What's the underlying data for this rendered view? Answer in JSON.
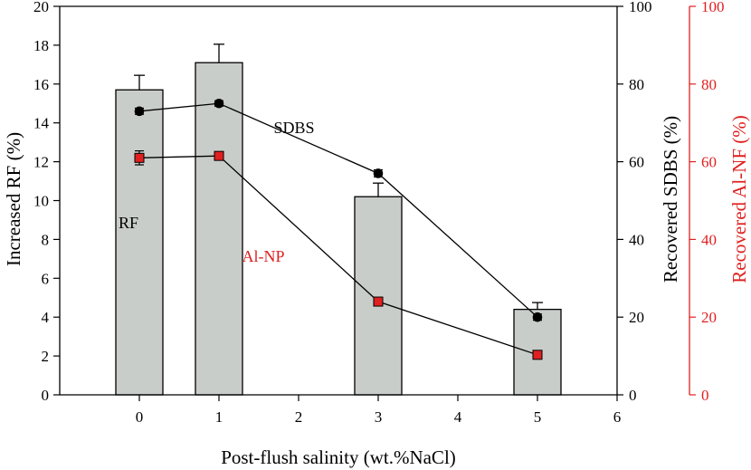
{
  "chart_data": {
    "type": "bar+line",
    "x_title": "Post-flush salinity (wt.%NaCl)",
    "xlim": [
      -1,
      6
    ],
    "x_ticks": [
      0,
      1,
      2,
      3,
      4,
      5,
      6
    ],
    "x_tick_labels": [
      "0",
      "1",
      "2",
      "3",
      "4",
      "5",
      "6"
    ],
    "left_axis": {
      "label": "Increased RF (%)",
      "ylim": [
        0,
        20
      ],
      "ticks": [
        0,
        2,
        4,
        6,
        8,
        10,
        12,
        14,
        16,
        18,
        20
      ],
      "tick_labels": [
        "0",
        "2",
        "4",
        "6",
        "8",
        "10",
        "12",
        "14",
        "16",
        "18",
        "20"
      ]
    },
    "right_axis_1": {
      "label": "Recovered SDBS (%)",
      "ylim": [
        0,
        100
      ],
      "ticks": [
        0,
        20,
        40,
        60,
        80,
        100
      ],
      "tick_labels": [
        "0",
        "20",
        "40",
        "60",
        "80",
        "100"
      ],
      "color": "#000000"
    },
    "right_axis_2": {
      "label": "Recovered Al-NF (%)",
      "ylim": [
        0,
        100
      ],
      "ticks": [
        0,
        20,
        40,
        60,
        80,
        100
      ],
      "tick_labels": [
        "0",
        "20",
        "40",
        "60",
        "80",
        "100"
      ],
      "color": "#e02020"
    },
    "bars": {
      "name": "RF",
      "axis": "left",
      "x": [
        0,
        1,
        3,
        5
      ],
      "values": [
        15.7,
        17.1,
        10.2,
        4.4
      ],
      "errors": [
        0.75,
        0.95,
        0.7,
        0.35
      ],
      "fill": "#c9cdc9"
    },
    "series": [
      {
        "name": "SDBS",
        "axis": "right_1",
        "x": [
          0,
          1,
          3,
          5
        ],
        "values": [
          73,
          75,
          57,
          20
        ],
        "errors": [
          0.8,
          0.7,
          0.9,
          0.8
        ],
        "marker": "circle",
        "color": "#000000"
      },
      {
        "name": "Al-NP",
        "axis": "right_2",
        "x": [
          0,
          1,
          3,
          5
        ],
        "values": [
          61,
          61.5,
          24,
          10.3
        ],
        "errors": [
          1.8,
          1.0,
          0.9,
          0.8
        ],
        "marker": "square",
        "color": "#e02020"
      }
    ],
    "annotations": [
      {
        "text": "RF",
        "color": "#000000"
      },
      {
        "text": "SDBS",
        "color": "#000000"
      },
      {
        "text": "Al-NP",
        "color": "#e02020"
      }
    ]
  }
}
